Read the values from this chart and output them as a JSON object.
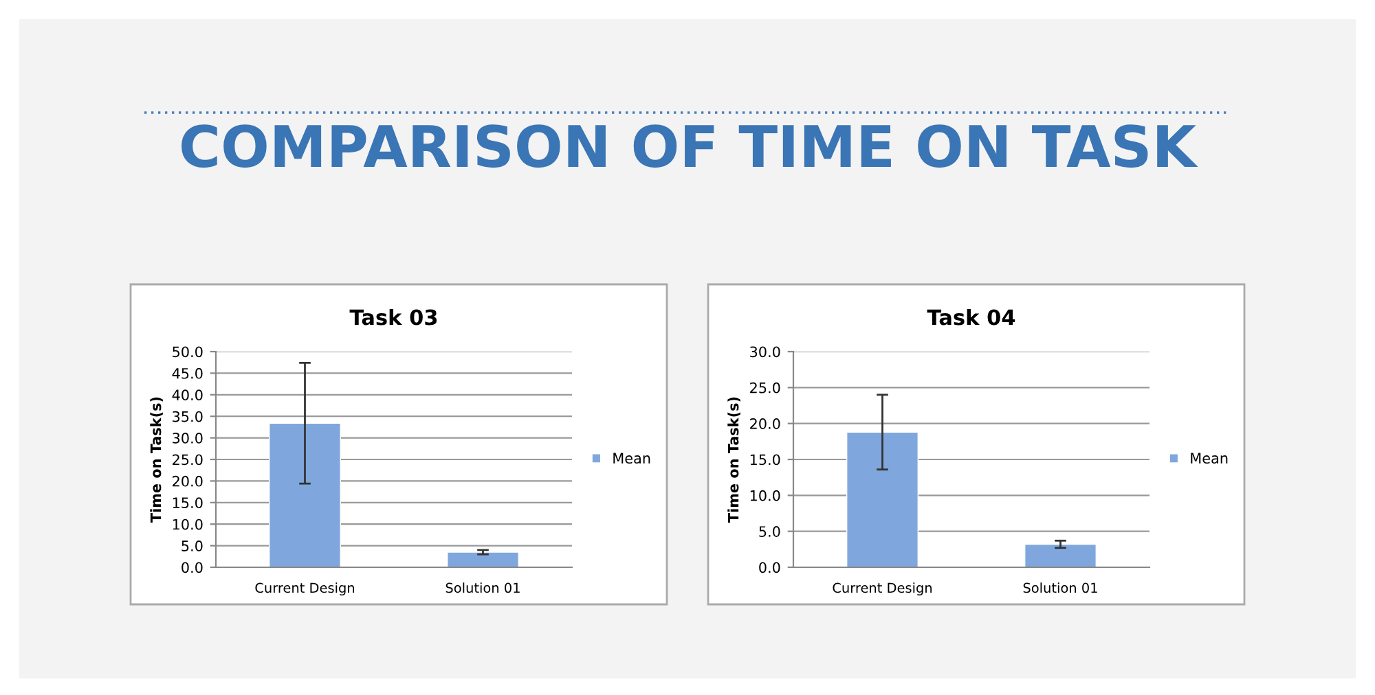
{
  "chart_data": [
    {
      "type": "bar",
      "title": "Task 03",
      "ylabel": "Time on Task(s)",
      "categories": [
        "Current Design",
        "Solution 01"
      ],
      "series": [
        {
          "name": "Mean",
          "color": "#7fa7dd",
          "values": [
            33.4,
            3.5
          ],
          "errors": [
            14.0,
            0.5
          ]
        }
      ],
      "ylim": [
        0,
        50
      ],
      "yticks": [
        {
          "value": 0,
          "label": "0.0"
        },
        {
          "value": 5,
          "label": "5.0"
        },
        {
          "value": 10,
          "label": "10.0"
        },
        {
          "value": 15,
          "label": "15.0"
        },
        {
          "value": 20,
          "label": "20.0"
        },
        {
          "value": 25,
          "label": "25.0"
        },
        {
          "value": 30,
          "label": "30.0"
        },
        {
          "value": 35,
          "label": "35.0"
        },
        {
          "value": 40,
          "label": "40.0"
        },
        {
          "value": 45,
          "label": "45.0"
        },
        {
          "value": 50,
          "label": "50.0"
        }
      ],
      "grid": "y",
      "legend": "right",
      "annotations": [
        "COMPARISON OF TIME ON TASK"
      ]
    },
    {
      "type": "bar",
      "title": "Task 04",
      "ylabel": "Time on Task(s)",
      "categories": [
        "Current Design",
        "Solution 01"
      ],
      "series": [
        {
          "name": "Mean",
          "color": "#7fa7dd",
          "values": [
            18.8,
            3.2
          ],
          "errors": [
            5.2,
            0.5
          ]
        }
      ],
      "ylim": [
        0,
        30
      ],
      "yticks": [
        {
          "value": 0,
          "label": "0.0"
        },
        {
          "value": 5,
          "label": "5.0"
        },
        {
          "value": 10,
          "label": "10.0"
        },
        {
          "value": 15,
          "label": "15.0"
        },
        {
          "value": 20,
          "label": "20.0"
        },
        {
          "value": 25,
          "label": "25.0"
        },
        {
          "value": 30,
          "label": "30.0"
        }
      ],
      "grid": "y",
      "legend": "right"
    }
  ]
}
